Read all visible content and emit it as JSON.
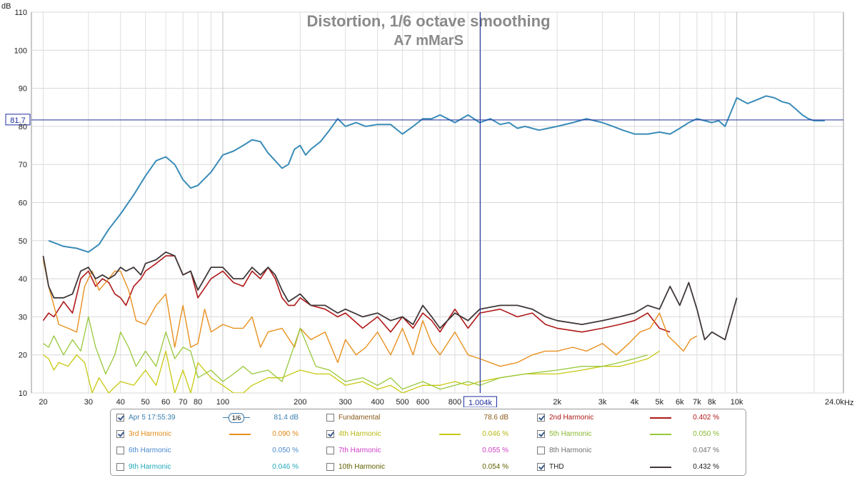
{
  "chart_data": {
    "type": "line",
    "title": "Distortion, 1/6 octave smoothing",
    "subtitle": "A7 mMarS",
    "ylabel": "dB",
    "xunit": "Hz",
    "xscale": "log",
    "xlim": [
      18,
      26000
    ],
    "ylim": [
      10,
      110
    ],
    "yticks": [
      10,
      20,
      30,
      40,
      50,
      60,
      70,
      80,
      90,
      100,
      110
    ],
    "xticks": [
      {
        "v": 20,
        "label": "20"
      },
      {
        "v": 30,
        "label": "30"
      },
      {
        "v": 40,
        "label": "40"
      },
      {
        "v": 50,
        "label": "50"
      },
      {
        "v": 60,
        "label": "60"
      },
      {
        "v": 70,
        "label": "70"
      },
      {
        "v": 80,
        "label": "80"
      },
      {
        "v": 100,
        "label": "100"
      },
      {
        "v": 200,
        "label": "200"
      },
      {
        "v": 300,
        "label": "300"
      },
      {
        "v": 400,
        "label": "400"
      },
      {
        "v": 500,
        "label": "500"
      },
      {
        "v": 600,
        "label": "600"
      },
      {
        "v": 800,
        "label": "800"
      },
      {
        "v": 2000,
        "label": "2k"
      },
      {
        "v": 3000,
        "label": "3k"
      },
      {
        "v": 4000,
        "label": "4k"
      },
      {
        "v": 5000,
        "label": "5k"
      },
      {
        "v": 6000,
        "label": "6k"
      },
      {
        "v": 7000,
        "label": "7k"
      },
      {
        "v": 8000,
        "label": "8k"
      },
      {
        "v": 10000,
        "label": "10k"
      },
      {
        "v": 24000,
        "label": "24.0k"
      }
    ],
    "cursor": {
      "x": 1004,
      "x_label": "1.004k",
      "y": 81.7,
      "y_label": "81.7"
    },
    "grid": true,
    "series": [
      {
        "name": "Apr 5 17:55:39",
        "color": "#3a8cb8",
        "width": 2,
        "x": [
          21,
          24,
          27,
          30,
          33,
          36,
          40,
          45,
          50,
          55,
          60,
          65,
          70,
          75,
          80,
          90,
          100,
          110,
          120,
          130,
          140,
          150,
          160,
          170,
          180,
          190,
          200,
          210,
          220,
          240,
          260,
          280,
          300,
          330,
          360,
          400,
          450,
          500,
          550,
          600,
          650,
          700,
          750,
          800,
          900,
          1000,
          1100,
          1200,
          1300,
          1400,
          1500,
          1700,
          2000,
          2300,
          2600,
          3000,
          3300,
          3600,
          4000,
          4500,
          5000,
          5500,
          6000,
          6500,
          7000,
          7500,
          8000,
          8500,
          9000,
          10000,
          11000,
          12000,
          13000,
          14000,
          15000,
          16000,
          17000,
          18000,
          19000,
          20000,
          21000,
          22000
        ],
        "y": [
          50,
          48.5,
          48,
          47,
          49,
          53,
          57,
          62,
          67,
          71,
          72,
          70,
          66,
          63.8,
          64.5,
          68,
          72.5,
          73.5,
          75,
          76.5,
          76,
          73,
          71,
          69,
          70,
          74,
          75,
          72.5,
          74,
          76,
          79,
          82,
          80,
          81,
          80,
          80.5,
          80.5,
          78,
          80,
          82,
          82,
          83,
          82,
          81,
          83,
          81,
          82,
          80.5,
          81,
          79.5,
          80,
          79,
          80,
          81,
          82,
          81,
          80,
          79,
          78,
          78,
          78.5,
          78,
          79.5,
          81,
          82,
          81.5,
          81,
          81.5,
          80,
          87.5,
          86,
          87,
          88,
          87.5,
          86.5,
          86,
          84.5,
          83,
          82,
          81.5,
          81.5,
          81.5
        ]
      },
      {
        "name": "2nd Harmonic",
        "color": "#b01818",
        "width": 1.6,
        "x": [
          20,
          21,
          22,
          24,
          26,
          28,
          30,
          32,
          34,
          36,
          38,
          40,
          42,
          45,
          48,
          50,
          55,
          60,
          65,
          70,
          75,
          80,
          90,
          100,
          110,
          120,
          130,
          140,
          150,
          160,
          170,
          180,
          190,
          200,
          220,
          250,
          280,
          300,
          350,
          400,
          450,
          500,
          550,
          600,
          650,
          700,
          800,
          900,
          1000,
          1200,
          1400,
          1600,
          1800,
          2000,
          2500,
          3000,
          3500,
          4000,
          4500,
          5000,
          5500,
          6000,
          6500,
          7000,
          7500,
          8000,
          9000,
          10000
        ],
        "y": [
          29,
          31,
          30,
          34,
          31,
          40,
          42,
          38,
          40,
          39,
          36,
          35,
          33,
          38,
          40,
          42,
          44,
          46,
          46,
          41,
          42,
          35,
          40,
          42,
          39,
          38,
          42,
          40,
          43,
          40,
          35,
          33,
          33,
          35,
          33,
          32,
          30,
          31,
          27,
          30,
          26,
          30,
          27,
          31,
          29,
          26,
          32,
          27,
          31,
          32,
          30,
          31,
          28,
          27,
          26,
          27,
          28,
          29,
          31,
          27,
          26,
          null,
          null,
          null,
          null,
          null,
          null,
          null
        ]
      },
      {
        "name": "3rd Harmonic",
        "color": "#e8901e",
        "width": 1.4,
        "x": [
          20,
          21,
          22,
          23,
          25,
          27,
          29,
          31,
          33,
          35,
          38,
          40,
          43,
          46,
          50,
          55,
          60,
          65,
          70,
          75,
          80,
          85,
          90,
          100,
          110,
          120,
          130,
          140,
          150,
          170,
          190,
          200,
          220,
          250,
          280,
          300,
          330,
          360,
          400,
          450,
          500,
          550,
          600,
          650,
          700,
          800,
          900,
          1000,
          1200,
          1400,
          1600,
          1800,
          2000,
          2300,
          2600,
          3000,
          3400,
          3800,
          4200,
          4600,
          5000,
          5400,
          5800,
          6200,
          6600,
          7000
        ],
        "y": [
          45,
          38,
          33,
          28,
          27,
          26,
          38,
          42,
          37,
          39,
          42,
          42,
          37,
          29,
          28,
          33,
          36,
          22,
          33,
          22,
          23,
          32,
          26,
          28,
          27,
          27,
          30,
          22,
          26,
          27,
          22,
          27,
          24,
          26,
          18,
          24,
          20,
          22,
          26,
          20,
          27,
          20,
          29,
          23,
          20,
          26,
          20,
          19,
          17,
          18,
          20,
          21,
          21,
          22,
          21,
          23,
          20,
          23,
          26,
          27,
          31,
          25,
          23,
          21,
          24,
          25
        ]
      },
      {
        "name": "4th Harmonic",
        "color": "#c8c810",
        "width": 1.3,
        "x": [
          20,
          21,
          22,
          23,
          25,
          27,
          29,
          31,
          33,
          36,
          40,
          45,
          50,
          55,
          60,
          65,
          70,
          75,
          80,
          90,
          100,
          110,
          120,
          130,
          150,
          170,
          200,
          230,
          260,
          300,
          350,
          400,
          450,
          500,
          600,
          700,
          800,
          900,
          1000,
          1200,
          1500,
          2000,
          2500,
          3000,
          3500,
          4000,
          4500,
          5000
        ],
        "y": [
          20,
          19,
          16,
          18,
          17,
          20,
          18,
          10,
          14,
          10,
          13,
          12,
          16,
          12,
          21,
          10,
          16,
          10,
          18,
          14,
          12,
          10,
          10,
          12,
          14,
          14,
          16,
          15,
          15,
          12,
          13,
          11,
          12,
          10,
          12,
          12,
          13,
          12,
          13,
          14,
          15,
          15,
          16,
          17,
          17,
          18,
          19,
          21
        ]
      },
      {
        "name": "5th Harmonic",
        "color": "#98c83a",
        "width": 1.3,
        "x": [
          20,
          21,
          22,
          24,
          26,
          28,
          30,
          32,
          35,
          38,
          40,
          43,
          46,
          50,
          55,
          60,
          65,
          70,
          75,
          80,
          90,
          100,
          110,
          120,
          130,
          150,
          170,
          200,
          230,
          260,
          300,
          350,
          400,
          450,
          500,
          600,
          700,
          800,
          900,
          1000,
          1200,
          1500,
          2000,
          2500,
          3000,
          3500,
          4000,
          4500
        ],
        "y": [
          23,
          22,
          25,
          20,
          24,
          21,
          30,
          22,
          15,
          20,
          26,
          22,
          17,
          21,
          17,
          26,
          19,
          22,
          21,
          14,
          16,
          13,
          15,
          17,
          15,
          16,
          13,
          27,
          17,
          16,
          13,
          14,
          12,
          14,
          11,
          13,
          11,
          12,
          13,
          12,
          14,
          15,
          16,
          17,
          17,
          18,
          19,
          20
        ]
      },
      {
        "name": "THD",
        "color": "#403838",
        "width": 1.8,
        "x": [
          20,
          21,
          22,
          24,
          26,
          28,
          30,
          32,
          34,
          36,
          38,
          40,
          42,
          45,
          48,
          50,
          55,
          60,
          65,
          70,
          75,
          80,
          90,
          100,
          110,
          120,
          130,
          140,
          150,
          160,
          170,
          180,
          190,
          200,
          220,
          250,
          280,
          300,
          350,
          400,
          450,
          500,
          550,
          600,
          650,
          700,
          800,
          900,
          1000,
          1200,
          1400,
          1600,
          1800,
          2000,
          2500,
          3000,
          3500,
          4000,
          4500,
          5000,
          5500,
          6000,
          6500,
          7000,
          7500,
          8000,
          9000,
          10000
        ],
        "y": [
          46,
          38,
          35,
          35,
          36,
          42,
          43,
          40,
          41,
          40,
          41,
          43,
          42,
          43,
          41,
          44,
          45,
          47,
          46,
          41,
          42,
          37,
          43,
          43,
          40,
          40,
          43,
          41,
          43,
          41,
          37,
          34,
          35,
          36,
          33,
          33,
          31,
          32,
          30,
          31,
          29,
          30,
          28,
          33,
          30,
          27,
          31,
          29,
          32,
          33,
          33,
          32,
          30,
          29,
          28,
          29,
          30,
          31,
          33,
          32,
          38,
          33,
          39,
          32,
          24,
          26,
          24,
          35
        ]
      }
    ]
  },
  "legend": {
    "rows": [
      [
        {
          "checked": true,
          "label": "Apr 5 17:55:39",
          "label_color": "#3a7fb0",
          "value": "81.4 dB",
          "value_color": "#3a7fb0",
          "swatch": "",
          "smoothing": "1/6"
        },
        {
          "checked": false,
          "label": "Fundamental",
          "label_color": "#8a5a1a",
          "value": "78.6 dB",
          "value_color": "#8a5a1a",
          "swatch": ""
        },
        {
          "checked": true,
          "label": "2nd Harmonic",
          "label_color": "#b01818",
          "value": "0.402 %",
          "value_color": "#b01818",
          "swatch": "#b01818"
        }
      ],
      [
        {
          "checked": true,
          "label": "3rd Harmonic",
          "label_color": "#e08a18",
          "value": "0.090 %",
          "value_color": "#e08a18",
          "swatch": "#e8901e"
        },
        {
          "checked": true,
          "label": "4th Harmonic",
          "label_color": "#b8b810",
          "value": "0.046 %",
          "value_color": "#b8b810",
          "swatch": "#c8c810"
        },
        {
          "checked": true,
          "label": "5th Harmonic",
          "label_color": "#88b830",
          "value": "0.050 %",
          "value_color": "#88b830",
          "swatch": "#98c83a"
        }
      ],
      [
        {
          "checked": false,
          "label": "6th Harmonic",
          "label_color": "#4a8ad0",
          "value": "0.050 %",
          "value_color": "#4a8ad0",
          "swatch": ""
        },
        {
          "checked": false,
          "label": "7th Harmonic",
          "label_color": "#d040c8",
          "value": "0.055 %",
          "value_color": "#d040c8",
          "swatch": ""
        },
        {
          "checked": false,
          "label": "8th Harmonic",
          "label_color": "#707070",
          "value": "0.047 %",
          "value_color": "#707070",
          "swatch": ""
        }
      ],
      [
        {
          "checked": false,
          "label": "9th Harmonic",
          "label_color": "#20a8b8",
          "value": "0.046 %",
          "value_color": "#20a8b8",
          "swatch": ""
        },
        {
          "checked": false,
          "label": "10th Harmonic",
          "label_color": "#606000",
          "value": "0.054 %",
          "value_color": "#606000",
          "swatch": ""
        },
        {
          "checked": true,
          "label": "THD",
          "label_color": "#202020",
          "value": "0.432 %",
          "value_color": "#202020",
          "swatch": "#403838"
        }
      ]
    ]
  }
}
